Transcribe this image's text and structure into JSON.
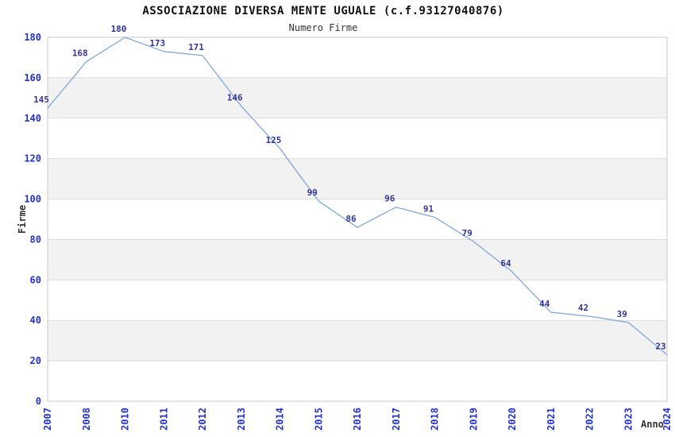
{
  "chart_data": {
    "type": "line",
    "title": "ASSOCIAZIONE DIVERSA MENTE UGUALE (c.f.93127040876)",
    "subtitle": "Numero Firme",
    "xlabel": "Anno",
    "ylabel": "Firme",
    "categories": [
      "2007",
      "2008",
      "2010",
      "2011",
      "2012",
      "2013",
      "2014",
      "2015",
      "2016",
      "2017",
      "2018",
      "2019",
      "2020",
      "2021",
      "2022",
      "2023",
      "2024"
    ],
    "series": [
      {
        "name": "Numero Firme",
        "values": [
          145,
          168,
          180,
          173,
          171,
          146,
          125,
          99,
          86,
          96,
          91,
          79,
          64,
          44,
          42,
          39,
          23
        ]
      }
    ],
    "data_labels_visible": true,
    "ylim": [
      0,
      180
    ],
    "ytick_step": 20,
    "yticks": [
      0,
      20,
      40,
      60,
      80,
      100,
      120,
      140,
      160,
      180
    ],
    "grid": "horizontal-alternating-bands",
    "legend_position": "none",
    "colors": {
      "line": "#7fa8dd",
      "tick_label": "#2233cc",
      "data_label": "#333399",
      "band": "#f2f2f2",
      "gridline": "#dcdcdc",
      "plot_border": "#c9c9c9",
      "title": "#111111",
      "axis_title": "#333333",
      "background": "#ffffff"
    }
  }
}
